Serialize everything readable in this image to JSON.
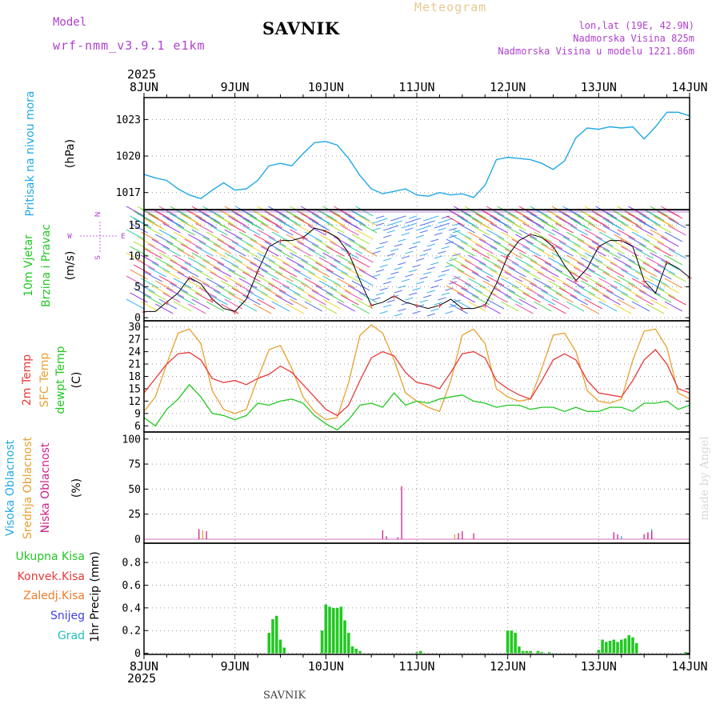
{
  "header": {
    "model_label": "Model",
    "model_name": "wrf-nmm_v3.9.1 e1km",
    "station": "SAVNIK",
    "chart_title": "Meteogram",
    "lonlat": "lon,lat (19E, 42.9N)",
    "altitude": "Nadmorska Visina 825m",
    "model_altitude": "Nadmorska Visina u modelu 1221.86m",
    "year_top": "2025",
    "year_bottom": "2025",
    "footer_station": "SAVNIK",
    "credit": "made by Angel"
  },
  "colors": {
    "pressure": "#1fa8e6",
    "temp2m": "#e83a3a",
    "sfc_temp": "#e8a030",
    "dewpt": "#22c822",
    "cloud_high": "#22a8e6",
    "cloud_mid": "#e8a030",
    "cloud_low": "#d0208a",
    "precip_total": "#22c822",
    "precip_conv": "#e83a3a",
    "precip_frz": "#f07c2a",
    "precip_snow": "#4040e0",
    "precip_hail": "#20c0c0",
    "purple": "#b040d0",
    "grid": "#999999"
  },
  "chart_data": [
    {
      "type": "line",
      "panel": "pressure",
      "ylabel_main": "Pritisak na nivou mora",
      "ylabel_unit": "(hPa)",
      "yticks": [
        1017,
        1020,
        1023
      ],
      "ylim": [
        1015.6,
        1024.8
      ],
      "x_hours": [
        0,
        3,
        6,
        9,
        12,
        15,
        18,
        21,
        24,
        27,
        30,
        33,
        36,
        39,
        42,
        45,
        48,
        51,
        54,
        57,
        60,
        63,
        66,
        69,
        72,
        75,
        78,
        81,
        84,
        87,
        90,
        93,
        96,
        99,
        102,
        105,
        108,
        111,
        114,
        117,
        120,
        123,
        126,
        129,
        132,
        135,
        138,
        141,
        144
      ],
      "values": [
        1018.5,
        1018.2,
        1018.0,
        1017.3,
        1016.8,
        1016.5,
        1017.2,
        1017.8,
        1017.2,
        1017.3,
        1018.0,
        1019.2,
        1019.4,
        1019.2,
        1020.2,
        1021.1,
        1021.2,
        1020.9,
        1019.8,
        1018.4,
        1017.3,
        1016.9,
        1017.1,
        1017.3,
        1016.8,
        1016.7,
        1017.0,
        1016.8,
        1016.9,
        1016.6,
        1017.6,
        1019.7,
        1019.9,
        1019.8,
        1019.7,
        1019.4,
        1018.9,
        1019.6,
        1021.5,
        1022.3,
        1022.2,
        1022.4,
        1022.3,
        1022.4,
        1021.4,
        1022.4,
        1023.6,
        1023.6,
        1023.3
      ]
    },
    {
      "type": "line",
      "panel": "wind",
      "ylabel_main": "10m Vjetar",
      "ylabel_sub": "Brzina i Pravac",
      "ylabel_unit": "(m/s)",
      "compass_n": "N",
      "compass_s": "S",
      "compass_w": "W",
      "compass_e": "E",
      "yticks": [
        0,
        5,
        10,
        15
      ],
      "ylim": [
        -0.5,
        17.5
      ],
      "x_hours": [
        0,
        3,
        6,
        9,
        12,
        15,
        18,
        21,
        24,
        27,
        30,
        33,
        36,
        39,
        42,
        45,
        48,
        51,
        54,
        57,
        60,
        63,
        66,
        69,
        72,
        75,
        78,
        81,
        84,
        87,
        90,
        93,
        96,
        99,
        102,
        105,
        108,
        111,
        114,
        117,
        120,
        123,
        126,
        129,
        132,
        135,
        138,
        141,
        144
      ],
      "speed": [
        1.0,
        1.0,
        2.5,
        4.0,
        6.5,
        5.5,
        3.0,
        1.5,
        1.0,
        3.0,
        7.5,
        11.5,
        12.5,
        12.5,
        13.0,
        14.5,
        14.0,
        13.0,
        10.5,
        6.0,
        2.0,
        2.5,
        3.5,
        2.5,
        2.0,
        1.5,
        2.0,
        3.0,
        1.5,
        1.5,
        2.0,
        5.5,
        10.0,
        12.5,
        13.5,
        13.0,
        11.5,
        8.5,
        6.0,
        8.0,
        11.5,
        12.5,
        12.5,
        11.5,
        6.0,
        4.0,
        9.0,
        8.0,
        6.5
      ]
    },
    {
      "type": "line",
      "panel": "temperature",
      "ylabel_t2m": "2m Temp",
      "ylabel_sfc": "SFC Temp",
      "ylabel_dew": "dewpt Temp",
      "ylabel_unit": "(C)",
      "yticks": [
        6,
        9,
        12,
        15,
        18,
        21,
        24,
        27,
        30
      ],
      "ylim": [
        4.5,
        31.5
      ],
      "x_hours": [
        0,
        3,
        6,
        9,
        12,
        15,
        18,
        21,
        24,
        27,
        30,
        33,
        36,
        39,
        42,
        45,
        48,
        51,
        54,
        57,
        60,
        63,
        66,
        69,
        72,
        75,
        78,
        81,
        84,
        87,
        90,
        93,
        96,
        99,
        102,
        105,
        108,
        111,
        114,
        117,
        120,
        123,
        126,
        129,
        132,
        135,
        138,
        141,
        144
      ],
      "series": [
        {
          "name": "2m Temp",
          "values": [
            14.0,
            17.5,
            21.0,
            23.5,
            23.8,
            22.0,
            17.5,
            16.5,
            17.0,
            16.0,
            17.5,
            18.5,
            20.5,
            19.0,
            16.0,
            13.0,
            10.0,
            8.5,
            11.0,
            17.0,
            22.5,
            24.0,
            23.0,
            19.0,
            16.5,
            16.0,
            15.0,
            19.0,
            23.5,
            24.0,
            22.5,
            17.0,
            15.0,
            13.5,
            12.5,
            17.0,
            22.0,
            23.5,
            22.0,
            17.0,
            14.0,
            13.5,
            13.0,
            17.0,
            22.0,
            24.5,
            21.0,
            15.0,
            14.0
          ]
        },
        {
          "name": "SFC Temp",
          "values": [
            9.5,
            13.0,
            21.0,
            28.5,
            29.5,
            26.0,
            14.5,
            10.0,
            9.0,
            10.0,
            17.5,
            24.5,
            25.5,
            20.0,
            13.0,
            9.5,
            7.5,
            8.0,
            16.5,
            28.0,
            30.5,
            28.5,
            22.0,
            14.0,
            12.0,
            10.5,
            9.5,
            17.0,
            28.0,
            29.5,
            26.0,
            15.0,
            13.0,
            12.0,
            12.5,
            20.0,
            28.0,
            28.5,
            24.0,
            14.5,
            12.0,
            11.5,
            12.5,
            22.0,
            29.0,
            29.5,
            25.0,
            14.0,
            12.5
          ]
        },
        {
          "name": "dewpt Temp",
          "values": [
            8.0,
            6.0,
            10.0,
            12.5,
            16.0,
            13.0,
            9.0,
            8.5,
            7.5,
            8.5,
            11.5,
            11.0,
            12.0,
            12.5,
            11.5,
            8.5,
            6.5,
            5.0,
            7.5,
            11.0,
            11.5,
            10.5,
            14.0,
            11.0,
            12.0,
            11.5,
            12.5,
            13.0,
            13.5,
            12.0,
            11.5,
            10.5,
            11.0,
            11.0,
            10.0,
            10.5,
            10.5,
            9.5,
            10.5,
            9.5,
            9.5,
            10.5,
            10.5,
            9.5,
            11.5,
            11.5,
            12.0,
            10.0,
            11.0
          ]
        }
      ]
    },
    {
      "type": "bar",
      "panel": "clouds",
      "ylabel_high": "Visoka Oblacnost",
      "ylabel_mid": "Srednja Oblacnost",
      "ylabel_low": "Niska Oblacnost",
      "ylabel_unit": "(%)",
      "yticks": [
        0,
        25,
        50,
        75,
        100
      ],
      "ylim": [
        -4,
        107
      ],
      "series": [
        {
          "name": "Visoka Oblacnost",
          "points": [
            [
              134,
              10
            ],
            [
              126,
              3
            ]
          ]
        },
        {
          "name": "Srednja Oblacnost",
          "points": [
            [
              15.5,
              9
            ],
            [
              133,
              5
            ],
            [
              82,
              5
            ]
          ]
        },
        {
          "name": "Niska Oblacnost",
          "points": [
            [
              14.5,
              10
            ],
            [
              16.5,
              8
            ],
            [
              63,
              9
            ],
            [
              64,
              3
            ],
            [
              67,
              2
            ],
            [
              68,
              53
            ],
            [
              83,
              6
            ],
            [
              84,
              8
            ],
            [
              87,
              6
            ],
            [
              124,
              7
            ],
            [
              125,
              5
            ],
            [
              132,
              5
            ],
            [
              133,
              7
            ],
            [
              134,
              8
            ]
          ]
        }
      ]
    },
    {
      "type": "bar",
      "panel": "precip",
      "ylabel_total": "Ukupna Kisa",
      "ylabel_conv": "Konvek.Kisa",
      "ylabel_frz": "Zaledj.Kisa",
      "ylabel_snow": "Snijeg",
      "ylabel_hail": "Grad",
      "ylabel_unit": "1hr Precip (mm)",
      "yticks": [
        0,
        0.2,
        0.4,
        0.6,
        0.8
      ],
      "ylim": [
        -0.01,
        0.97
      ],
      "xticks": [
        "8JUN",
        "9JUN",
        "10JUN",
        "11JUN",
        "12JUN",
        "13JUN",
        "14JUN"
      ],
      "bars": [
        [
          33,
          0.18
        ],
        [
          34,
          0.3
        ],
        [
          35,
          0.33
        ],
        [
          36,
          0.12
        ],
        [
          37,
          0.05
        ],
        [
          47,
          0.2
        ],
        [
          48,
          0.43
        ],
        [
          49,
          0.41
        ],
        [
          50,
          0.4
        ],
        [
          51,
          0.4
        ],
        [
          52,
          0.41
        ],
        [
          53,
          0.29
        ],
        [
          54,
          0.18
        ],
        [
          55,
          0.06
        ],
        [
          56,
          0.04
        ],
        [
          57,
          0.02
        ],
        [
          72,
          0.01
        ],
        [
          73,
          0.02
        ],
        [
          96,
          0.2
        ],
        [
          97,
          0.2
        ],
        [
          98,
          0.18
        ],
        [
          99,
          0.06
        ],
        [
          100,
          0.02
        ],
        [
          101,
          0.02
        ],
        [
          102,
          0.02
        ],
        [
          104,
          0.02
        ],
        [
          105,
          0.01
        ],
        [
          107,
          0.01
        ],
        [
          120,
          0.03
        ],
        [
          121,
          0.12
        ],
        [
          122,
          0.1
        ],
        [
          123,
          0.11
        ],
        [
          124,
          0.12
        ],
        [
          125,
          0.1
        ],
        [
          126,
          0.12
        ],
        [
          127,
          0.13
        ],
        [
          128,
          0.16
        ],
        [
          129,
          0.14
        ],
        [
          130,
          0.09
        ],
        [
          143,
          0.01
        ]
      ]
    }
  ]
}
